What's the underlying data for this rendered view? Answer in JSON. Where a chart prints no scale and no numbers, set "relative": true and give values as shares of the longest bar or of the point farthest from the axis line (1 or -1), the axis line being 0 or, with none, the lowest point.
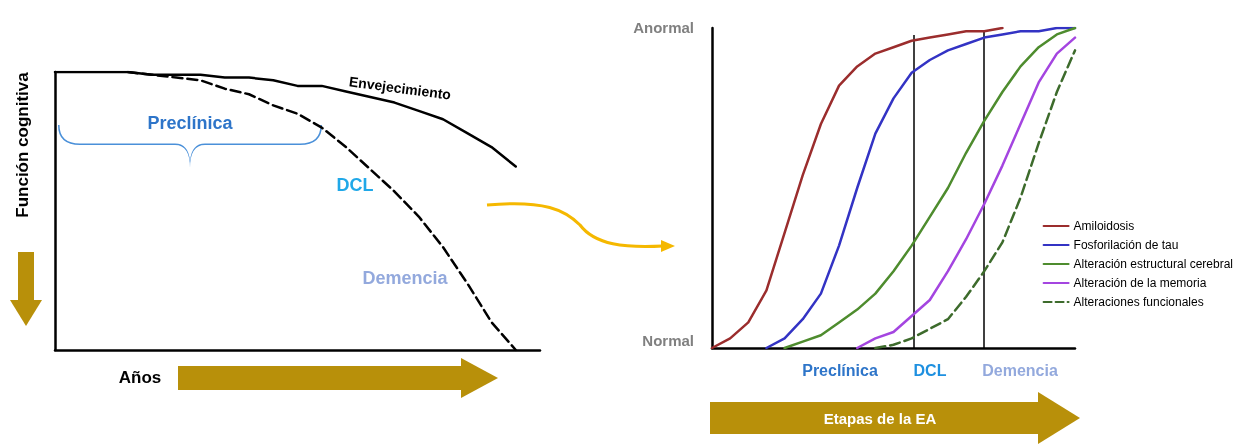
{
  "chart_data": [
    {
      "type": "line",
      "relative": true,
      "xlabel": "Años",
      "ylabel": "Función cognitiva",
      "marker": "none",
      "categories": [
        null,
        null,
        null,
        null,
        null,
        null,
        null,
        null,
        null,
        null,
        null,
        null,
        null,
        null,
        null,
        null,
        null,
        null,
        null,
        null,
        null
      ],
      "annotations": [
        "Envejecimiento",
        "Preclínica",
        "DCL",
        "Demencia"
      ],
      "series": [
        {
          "color": "#000000",
          "line_style": "solid",
          "values": [
            1.0,
            1.0,
            1.0,
            1.0,
            0.99,
            0.99,
            0.99,
            0.98,
            0.98,
            0.97,
            0.95,
            0.95,
            0.93,
            0.91,
            0.89,
            0.86,
            0.83,
            0.78,
            0.73,
            0.66,
            null
          ]
        },
        {
          "color": "#000000",
          "line_style": "dashed",
          "values": [
            null,
            null,
            null,
            1.0,
            0.99,
            0.98,
            0.97,
            0.94,
            0.92,
            0.88,
            0.85,
            0.8,
            0.73,
            0.65,
            0.57,
            0.48,
            0.37,
            0.24,
            0.1,
            0.0,
            null
          ]
        }
      ]
    },
    {
      "type": "line",
      "relative": true,
      "xlabel": "Etapas de la EA",
      "marker": "none",
      "legend": "right",
      "categories": [
        null,
        null,
        null,
        null,
        null,
        null,
        null,
        null,
        null,
        null,
        null,
        null,
        null,
        null,
        null,
        null,
        null,
        null,
        null,
        null,
        null
      ],
      "annotations": [
        "Anormal",
        "Normal",
        "Preclínica",
        "DCL",
        "Demencia"
      ],
      "series": [
        {
          "name": "Amiloidosis",
          "color": "#9b2d2d",
          "line_style": "solid",
          "values": [
            0,
            0.03,
            0.08,
            0.18,
            0.36,
            0.54,
            0.7,
            0.82,
            0.88,
            0.92,
            0.94,
            0.96,
            0.97,
            0.98,
            0.99,
            0.99,
            1.0,
            null,
            null,
            null,
            null
          ]
        },
        {
          "name": "Fosforilación de tau",
          "color": "#3333c4",
          "line_style": "solid",
          "values": [
            null,
            null,
            null,
            0,
            0.03,
            0.09,
            0.17,
            0.32,
            0.5,
            0.67,
            0.78,
            0.86,
            0.9,
            0.93,
            0.95,
            0.97,
            0.98,
            0.99,
            0.99,
            1.0,
            1.0
          ]
        },
        {
          "name": "Alteración estructural cerebral",
          "color": "#4e8c2e",
          "line_style": "solid",
          "values": [
            null,
            null,
            null,
            null,
            0,
            0.02,
            0.04,
            0.08,
            0.12,
            0.17,
            0.24,
            0.32,
            0.41,
            0.5,
            0.61,
            0.71,
            0.8,
            0.88,
            0.94,
            0.98,
            1.0
          ]
        },
        {
          "name": "Alteración de la memoria",
          "color": "#a445e0",
          "line_style": "solid",
          "values": [
            null,
            null,
            null,
            null,
            null,
            null,
            null,
            null,
            0,
            0.03,
            0.05,
            0.1,
            0.15,
            0.24,
            0.34,
            0.45,
            0.57,
            0.7,
            0.83,
            0.92,
            0.97
          ]
        },
        {
          "name": "Alteraciones funcionales",
          "color": "#3d6b2c",
          "line_style": "dashed",
          "values": [
            null,
            null,
            null,
            null,
            null,
            null,
            null,
            null,
            null,
            0,
            0.01,
            0.03,
            0.06,
            0.09,
            0.16,
            0.24,
            0.33,
            0.47,
            0.64,
            0.8,
            0.93
          ]
        }
      ]
    }
  ]
}
